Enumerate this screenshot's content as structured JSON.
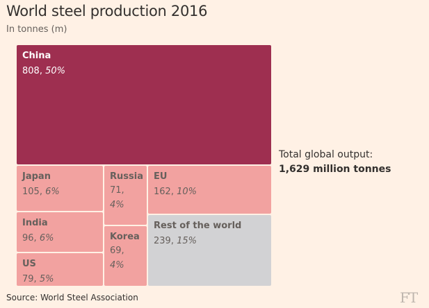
{
  "title": "World steel production 2016",
  "subtitle": "In tonnes (m)",
  "total": {
    "label": "Total global output:",
    "value": "1,629 million tonnes"
  },
  "source": "Source: World Steel Association",
  "logo": "FT",
  "colors": {
    "background": "#fff1e5",
    "china": "#9e2f50",
    "others": "#f2a2a0",
    "rest": "#d2d2d4",
    "label_light": "#ffffff",
    "label_dark": "#66605c"
  },
  "chart_data": {
    "type": "treemap",
    "title": "World steel production 2016",
    "unit": "tonnes (m)",
    "total": 1629,
    "items": [
      {
        "id": "china",
        "name": "China",
        "value": 808,
        "share": 50,
        "value_label": "808, ",
        "share_label": "50%"
      },
      {
        "id": "japan",
        "name": "Japan",
        "value": 105,
        "share": 6,
        "value_label": "105, ",
        "share_label": "6%"
      },
      {
        "id": "india",
        "name": "India",
        "value": 96,
        "share": 6,
        "value_label": "96, ",
        "share_label": "6%"
      },
      {
        "id": "us",
        "name": "US",
        "value": 79,
        "share": 5,
        "value_label": "79, ",
        "share_label": "5%"
      },
      {
        "id": "russia",
        "name": "Russia",
        "value": 71,
        "share": 4,
        "value_label": "71,",
        "share_label": "4%"
      },
      {
        "id": "korea",
        "name": "Korea",
        "value": 69,
        "share": 4,
        "value_label": "69,",
        "share_label": "4%"
      },
      {
        "id": "eu",
        "name": "EU",
        "value": 162,
        "share": 10,
        "value_label": "162, ",
        "share_label": "10%"
      },
      {
        "id": "rest",
        "name": "Rest of the world",
        "value": 239,
        "share": 15,
        "value_label": "239, ",
        "share_label": "15%"
      }
    ]
  }
}
